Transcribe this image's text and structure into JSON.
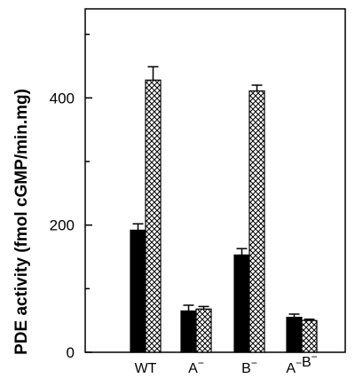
{
  "chart_data": {
    "type": "bar",
    "title": "",
    "xlabel": "",
    "ylabel": "PDE activity (fmol cGMP/min.mg)",
    "ylim": [
      0,
      540
    ],
    "yticks": [
      0,
      200,
      400
    ],
    "categories": [
      {
        "base": "WT",
        "parts": [
          {
            "t": "WT",
            "sup": ""
          }
        ]
      },
      {
        "base": "A",
        "parts": [
          {
            "t": "A",
            "sup": "−"
          }
        ]
      },
      {
        "base": "B",
        "parts": [
          {
            "t": "B",
            "sup": "−"
          }
        ]
      },
      {
        "base": "A B",
        "parts": [
          {
            "t": "A",
            "sup": "−"
          },
          {
            "t": "B",
            "sup": "−"
          }
        ]
      }
    ],
    "series": [
      {
        "fill": "solid",
        "color": "#000000",
        "values": [
          192,
          65,
          153,
          55
        ],
        "errors": [
          10,
          9,
          10,
          5
        ]
      },
      {
        "fill": "crosshatch",
        "color": "#000000",
        "values": [
          428,
          68,
          411,
          50
        ],
        "errors": [
          21,
          4,
          9,
          2
        ]
      }
    ],
    "grid": false,
    "legend": "none"
  }
}
